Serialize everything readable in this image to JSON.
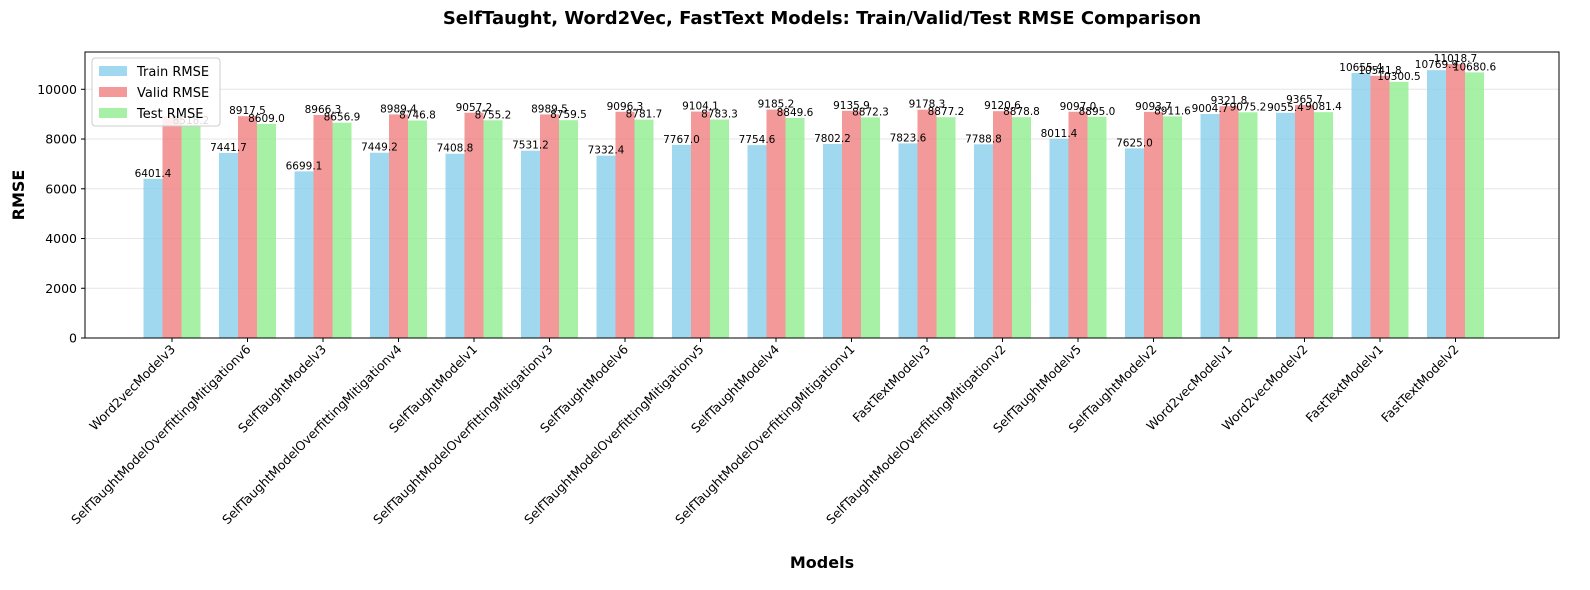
{
  "chart_data": {
    "type": "bar",
    "title": "SelfTaught, Word2Vec, FastText Models: Train/Valid/Test RMSE Comparison",
    "xlabel": "Models",
    "ylabel": "RMSE",
    "ylim": [
      0,
      11500
    ],
    "yticks": [
      0,
      2000,
      4000,
      6000,
      8000,
      10000
    ],
    "grid": "y",
    "legend_position": "top-left",
    "categories": [
      "Word2vecModelv3",
      "SelfTaughtModelOverfittingMitigationv6",
      "SelfTaughtModelv3",
      "SelfTaughtModelOverfittingMitigationv4",
      "SelfTaughtModelv1",
      "SelfTaughtModelOverfittingMitigationv3",
      "SelfTaughtModelv6",
      "SelfTaughtModelOverfittingMitigationv5",
      "SelfTaughtModelv4",
      "SelfTaughtModelOverfittingMitigationv1",
      "FastTextModelv3",
      "SelfTaughtModelOverfittingMitigationv2",
      "SelfTaughtModelv5",
      "SelfTaughtModelv2",
      "Word2vecModelv1",
      "Word2vecModelv2",
      "FastTextModelv1",
      "FastTextModelv2"
    ],
    "series": [
      {
        "name": "Train RMSE",
        "color": "#87ceeb",
        "values": [
          6401.4,
          7441.7,
          6699.1,
          7449.2,
          7408.8,
          7531.2,
          7332.4,
          7767.0,
          7754.6,
          7802.2,
          7823.6,
          7788.8,
          8011.4,
          7625.0,
          9004.7,
          9055.4,
          10655.4,
          10769.9
        ],
        "labels": [
          "6401.4",
          "7441.7",
          "6699.1",
          "7449.2",
          "7408.8",
          "7531.2",
          "7332.4",
          "7767.0",
          "7754.6",
          "7802.2",
          "7823.6",
          "7788.8",
          "8011.4",
          "7625.0",
          "9004.7",
          "9055.4",
          "10655.4",
          "10769.9"
        ]
      },
      {
        "name": "Valid RMSE",
        "color": "#f08080",
        "values": [
          8920.0,
          8917.5,
          8966.3,
          8989.4,
          9057.2,
          8989.5,
          9096.3,
          9104.1,
          9185.2,
          9135.9,
          9178.3,
          9120.6,
          9097.0,
          9093.7,
          9321.8,
          9365.7,
          10541.8,
          11018.7
        ],
        "labels": [
          "",
          "8917.5",
          "8966.3",
          "8989.4",
          "9057.2",
          "8989.5",
          "9096.3",
          "9104.1",
          "9185.2",
          "9135.9",
          "9178.3",
          "9120.6",
          "9097.0",
          "9093.7",
          "9321.8",
          "9365.7",
          "10541.8",
          "11018.7"
        ]
      },
      {
        "name": "Test RMSE",
        "color": "#90ee90",
        "values": [
          8518.2,
          8609.0,
          8656.9,
          8746.8,
          8755.2,
          8759.5,
          8781.7,
          8783.3,
          8849.6,
          8872.3,
          8877.2,
          8878.8,
          8895.0,
          8911.6,
          9075.2,
          9081.4,
          10300.5,
          10680.6
        ],
        "labels": [
          "8518.2",
          "8609.0",
          "8656.9",
          "8746.8",
          "8755.2",
          "8759.5",
          "8781.7",
          "8783.3",
          "8849.6",
          "8872.3",
          "8877.2",
          "8878.8",
          "8895.0",
          "8911.6",
          "9075.2",
          "9081.4",
          "10300.5",
          "10680.6"
        ]
      }
    ]
  }
}
